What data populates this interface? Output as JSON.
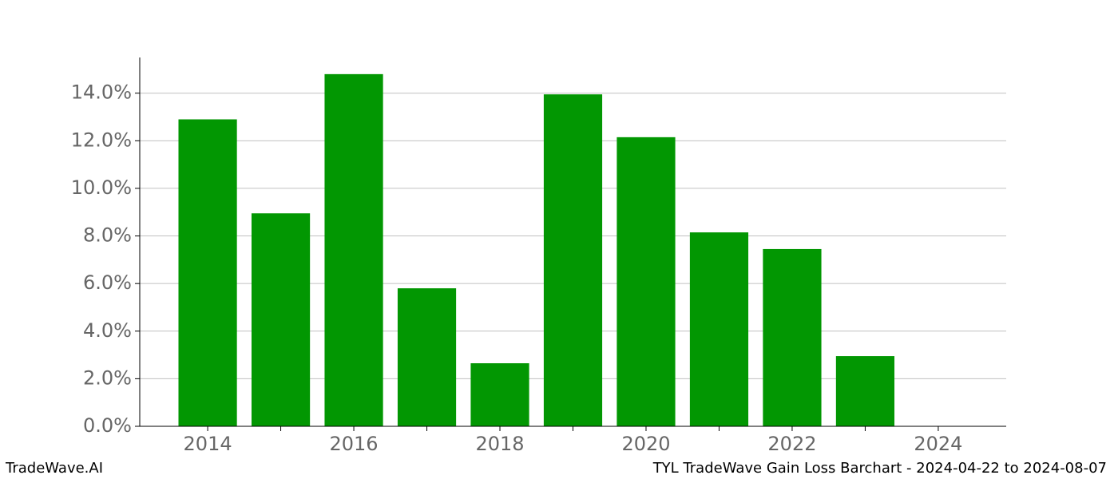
{
  "chart_data": {
    "type": "bar",
    "x": [
      2014,
      2015,
      2016,
      2017,
      2018,
      2019,
      2020,
      2021,
      2022,
      2023
    ],
    "values": [
      12.9,
      8.95,
      14.8,
      5.8,
      2.65,
      13.95,
      12.15,
      8.15,
      7.45,
      2.95
    ],
    "color": "#029702",
    "xlim": [
      2013.07,
      2024.93
    ],
    "xticks": [
      2014,
      2016,
      2018,
      2020,
      2022,
      2024
    ],
    "xticks_minor": [
      2015,
      2017,
      2019,
      2021,
      2023
    ],
    "ylim": [
      0,
      15.5
    ],
    "yticks": [
      {
        "value": 0,
        "label": "0.0%"
      },
      {
        "value": 2,
        "label": "2.0%"
      },
      {
        "value": 4,
        "label": "4.0%"
      },
      {
        "value": 6,
        "label": "6.0%"
      },
      {
        "value": 8,
        "label": "8.0%"
      },
      {
        "value": 10,
        "label": "10.0%"
      },
      {
        "value": 12,
        "label": "12.0%"
      },
      {
        "value": 14,
        "label": "14.0%"
      }
    ],
    "grid": true,
    "footer_left": "TradeWave.AI",
    "footer_right": "TYL TradeWave Gain Loss Barchart - 2024-04-22 to 2024-08-07"
  }
}
